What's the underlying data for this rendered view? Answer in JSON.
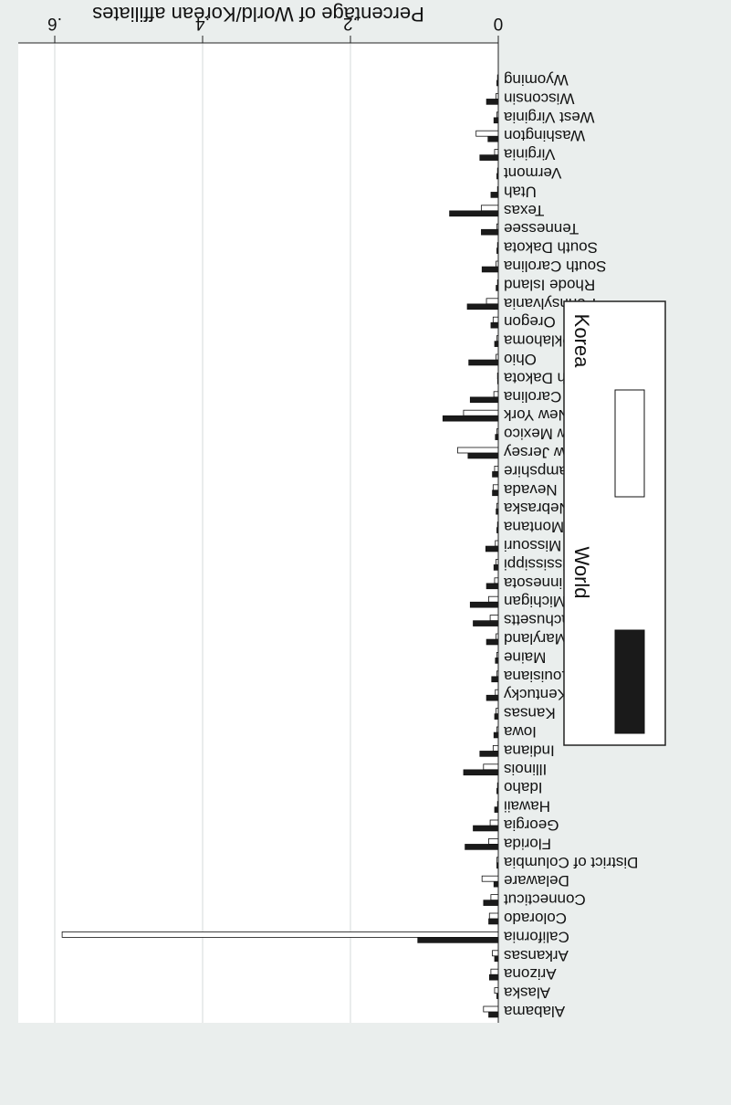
{
  "chart_data": {
    "type": "bar",
    "orientation": "horizontal",
    "rendering": "rotated 180 degrees",
    "ylabel": "Percentage of World/Korean affiliates",
    "ylim": [
      0,
      0.6
    ],
    "ticks": [
      {
        "value": 0,
        "label": "0"
      },
      {
        "value": 0.2,
        "label": ".2"
      },
      {
        "value": 0.4,
        "label": ".4"
      },
      {
        "value": 0.6,
        "label": ".6"
      }
    ],
    "grid": true,
    "legend_position": "right",
    "series": [
      {
        "name": "World",
        "color": "#1a1a1a"
      },
      {
        "name": "Korea",
        "color": "#ffffff"
      }
    ],
    "categories": [
      "Alabama",
      "Alaska",
      "Arizona",
      "Arkansas",
      "California",
      "Colorado",
      "Connecticut",
      "Delaware",
      "District of Columbia",
      "Florida",
      "Georgia",
      "Hawaii",
      "Idaho",
      "Illinois",
      "Indiana",
      "Iowa",
      "Kansas",
      "Kentucky",
      "Louisiana",
      "Maine",
      "Maryland",
      "Massachusetts",
      "Michigan",
      "Minnesota",
      "Mississippi",
      "Missouri",
      "Montana",
      "Nebraska",
      "Nevada",
      "New Hampshire",
      "New Jersey",
      "New Mexico",
      "New York",
      "North Carolina",
      "North Dakota",
      "Ohio",
      "Oklahoma",
      "Oregon",
      "Pennsylvania",
      "Rhode Island",
      "South Carolina",
      "South Dakota",
      "Tennessee",
      "Texas",
      "Utah",
      "Vermont",
      "Virginia",
      "Washington",
      "West Virginia",
      "Wisconsin",
      "Wyoming"
    ],
    "world": [
      0.013,
      0.002,
      0.012,
      0.005,
      0.109,
      0.013,
      0.02,
      0.006,
      0.002,
      0.045,
      0.034,
      0.005,
      0.002,
      0.047,
      0.025,
      0.006,
      0.005,
      0.016,
      0.009,
      0.004,
      0.016,
      0.034,
      0.038,
      0.016,
      0.006,
      0.017,
      0.002,
      0.003,
      0.008,
      0.008,
      0.041,
      0.004,
      0.075,
      0.038,
      0.001,
      0.04,
      0.005,
      0.01,
      0.042,
      0.003,
      0.022,
      0.002,
      0.023,
      0.066,
      0.01,
      0.002,
      0.025,
      0.014,
      0.006,
      0.016,
      0.002
    ],
    "korea": [
      0.02,
      0.005,
      0.01,
      0.008,
      0.59,
      0.012,
      0.01,
      0.022,
      0.002,
      0.013,
      0.011,
      0.001,
      0.001,
      0.02,
      0.007,
      0.002,
      0.003,
      0.004,
      0.002,
      0.002,
      0.003,
      0.011,
      0.013,
      0.005,
      0.003,
      0.004,
      0.001,
      0.002,
      0.007,
      0.005,
      0.055,
      0.002,
      0.047,
      0.006,
      0.001,
      0.003,
      0.002,
      0.007,
      0.016,
      0.001,
      0.003,
      0.001,
      0.002,
      0.023,
      0.001,
      0.001,
      0.005,
      0.03,
      0.002,
      0.003,
      0.001
    ]
  }
}
